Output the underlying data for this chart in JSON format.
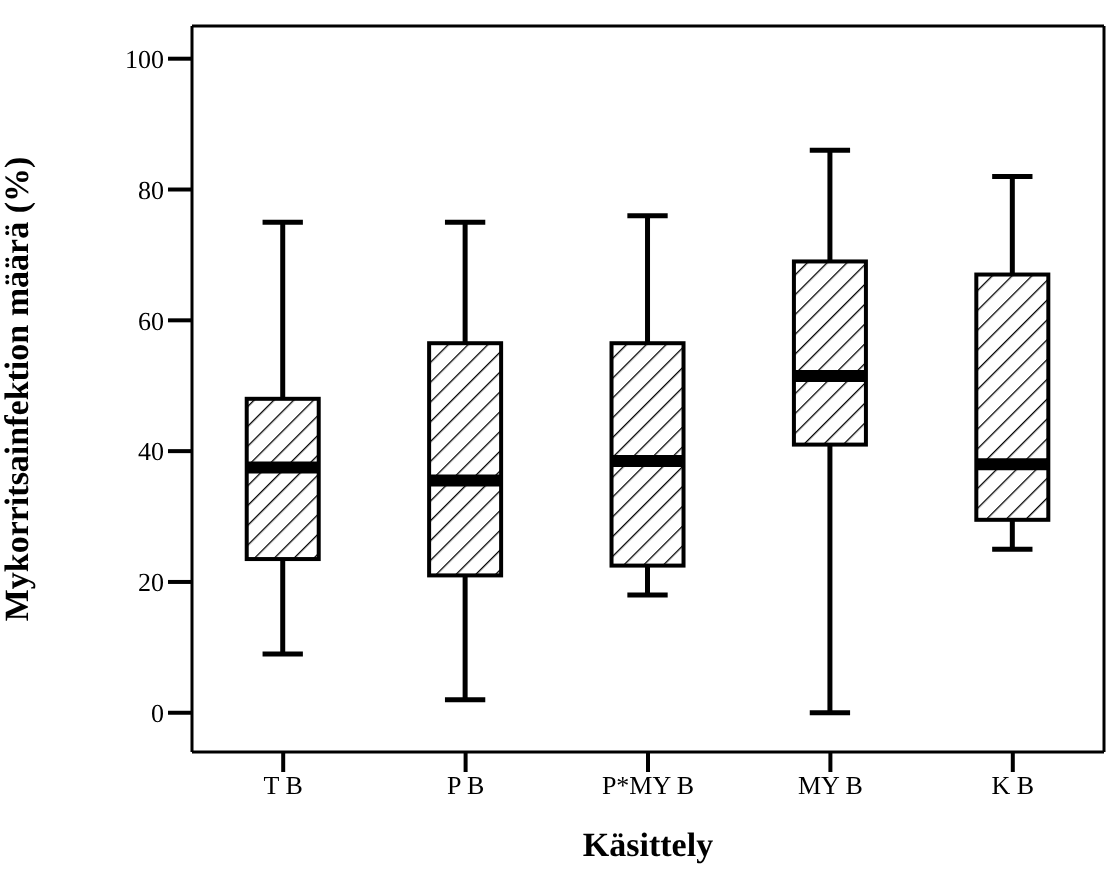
{
  "chart_data": {
    "type": "box",
    "xlabel": "Käsittely",
    "ylabel": "Mykorritsainfektion määrä (%)",
    "categories": [
      "T B",
      "P B",
      "P*MY B",
      "MY B",
      "K B"
    ],
    "boxes": [
      {
        "low": 9,
        "q1": 23.5,
        "median": 37.5,
        "q3": 48,
        "high": 75
      },
      {
        "low": 2,
        "q1": 21,
        "median": 35.5,
        "q3": 56.5,
        "high": 75
      },
      {
        "low": 18,
        "q1": 22.5,
        "median": 38.5,
        "q3": 56.5,
        "high": 76
      },
      {
        "low": 0,
        "q1": 41,
        "median": 51.5,
        "q3": 69,
        "high": 86
      },
      {
        "low": 25,
        "q1": 29.5,
        "median": 38,
        "q3": 67,
        "high": 82
      }
    ],
    "ylim": [
      -6,
      105
    ],
    "yticks": [
      0,
      20,
      40,
      60,
      80,
      100
    ],
    "grid": false
  }
}
